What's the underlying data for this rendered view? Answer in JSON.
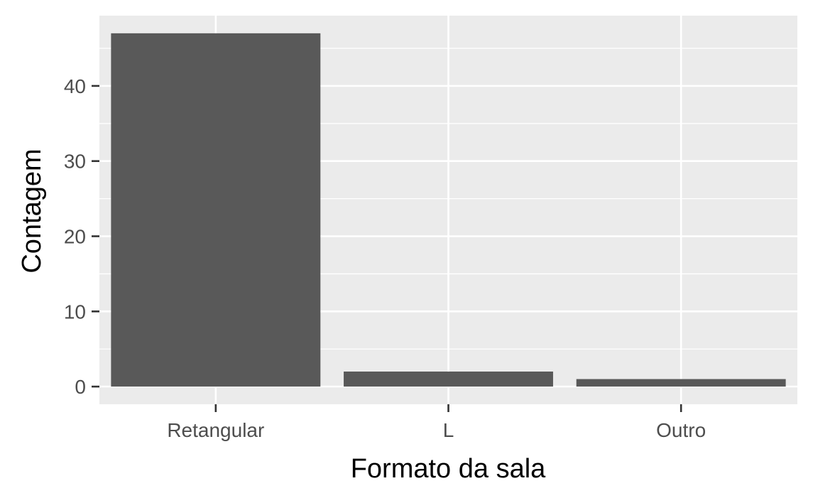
{
  "chart_data": {
    "type": "bar",
    "title": "",
    "xlabel": "Formato da sala",
    "ylabel": "Contagem",
    "categories": [
      "Retangular",
      "L",
      "Outro"
    ],
    "values": [
      47,
      2,
      1
    ],
    "ylim": [
      -2.35,
      49.35
    ],
    "yticks": [
      0,
      10,
      20,
      30,
      40
    ],
    "grid": true,
    "legend": "none",
    "colors": {
      "bar": "#595959",
      "panel": "#ebebeb",
      "grid": "#ffffff",
      "tick_text": "#4d4d4d",
      "tick_mark": "#333333",
      "axis_title": "#000000"
    }
  }
}
